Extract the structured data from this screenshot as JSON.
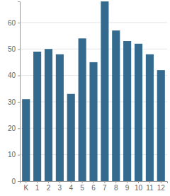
{
  "chart_data": {
    "type": "bar",
    "categories": [
      "K",
      "1",
      "2",
      "3",
      "4",
      "5",
      "6",
      "7",
      "8",
      "9",
      "10",
      "11",
      "12"
    ],
    "values": [
      31,
      49,
      50,
      48,
      33,
      54,
      45,
      68,
      57,
      53,
      52,
      48,
      42
    ],
    "color": "#346a8e",
    "ylim": [
      0,
      68
    ],
    "yticks": [
      0,
      10,
      20,
      30,
      40,
      50,
      60
    ],
    "grid": true
  }
}
